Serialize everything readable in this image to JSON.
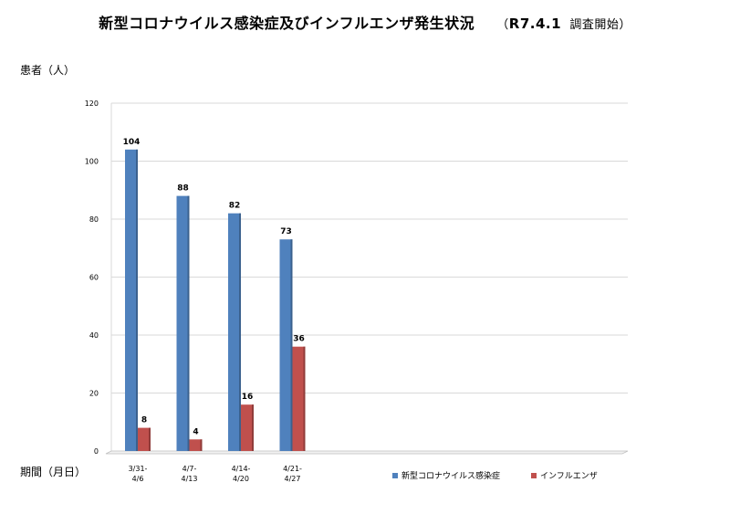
{
  "header": {
    "title": "新型コロナウイルス感染症及びインフルエンザ発生状況",
    "subtitle_prefix": "（",
    "subtitle_number": "R7.4.1",
    "subtitle_suffix": "調査開始）"
  },
  "chart_data": {
    "type": "bar",
    "title": "新型コロナウイルス感染症及びインフルエンザ発生状況",
    "ylabel": "患者（人）",
    "xlabel": "期間（月日）",
    "ylim": [
      0,
      120
    ],
    "yticks": [
      0,
      20,
      40,
      60,
      80,
      100,
      120
    ],
    "grid": true,
    "legend_position": "bottom-right",
    "categories": [
      [
        "3/31-",
        "4/6"
      ],
      [
        "4/7-",
        "4/13"
      ],
      [
        "4/14-",
        "4/20"
      ],
      [
        "4/21-",
        "4/27"
      ]
    ],
    "series": [
      {
        "name": "新型コロナウイルス感染症",
        "color": "#4f81bd",
        "values": [
          104,
          88,
          82,
          73
        ]
      },
      {
        "name": "インフルエンザ",
        "color": "#c0504d",
        "values": [
          8,
          4,
          16,
          36
        ]
      }
    ]
  }
}
